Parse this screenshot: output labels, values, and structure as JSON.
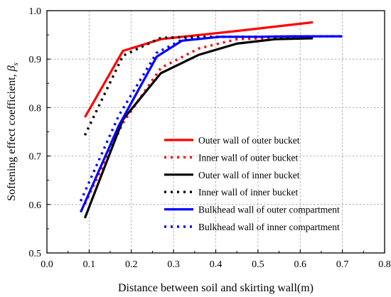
{
  "chart_data": {
    "type": "line",
    "xlabel": "Distance between soil and skirting wall(m)",
    "ylabel_main": "Softening effect coefficient, ",
    "ylabel_symbol": "β",
    "ylabel_subscript": "s",
    "xlim": [
      0.0,
      0.8
    ],
    "ylim": [
      0.5,
      1.0
    ],
    "xticks": [
      0.0,
      0.1,
      0.2,
      0.3,
      0.4,
      0.5,
      0.6,
      0.7,
      0.8
    ],
    "yticks": [
      0.5,
      0.6,
      0.7,
      0.8,
      0.9,
      1.0
    ],
    "xtick_labels": [
      "0.0",
      "0.1",
      "0.2",
      "0.3",
      "0.4",
      "0.5",
      "0.6",
      "0.7",
      "0.8"
    ],
    "ytick_labels": [
      "0.5",
      "0.6",
      "0.7",
      "0.8",
      "0.9",
      "1.0"
    ],
    "grid": true,
    "legend_position": "lower-right",
    "series": [
      {
        "name": "Outer wall of outer bucket",
        "color": "#ff0000",
        "style": "solid",
        "x": [
          0.09,
          0.18,
          0.27,
          0.32,
          0.45,
          0.54,
          0.63
        ],
        "y": [
          0.78,
          0.917,
          0.941,
          0.946,
          0.958,
          0.967,
          0.976
        ]
      },
      {
        "name": "Inner wall of outer bucket",
        "color": "#ff0000",
        "style": "dotted",
        "x": [
          0.09,
          0.18,
          0.27,
          0.36,
          0.45,
          0.54,
          0.63
        ],
        "y": [
          0.601,
          0.768,
          0.882,
          0.922,
          0.941,
          0.944,
          0.945
        ]
      },
      {
        "name": "Outer wall of inner bucket",
        "color": "#000000",
        "style": "solid",
        "x": [
          0.09,
          0.18,
          0.27,
          0.36,
          0.45,
          0.54,
          0.63
        ],
        "y": [
          0.572,
          0.775,
          0.871,
          0.909,
          0.932,
          0.941,
          0.943
        ]
      },
      {
        "name": "Inner wall of inner bucket",
        "color": "#000000",
        "style": "dotted",
        "x": [
          0.09,
          0.18,
          0.27,
          0.36,
          0.45,
          0.54,
          0.63
        ],
        "y": [
          0.743,
          0.907,
          0.944,
          0.946,
          0.946,
          0.946,
          0.946
        ]
      },
      {
        "name": "Bulkhead wall of outer compartment",
        "color": "#0000ff",
        "style": "solid",
        "x": [
          0.08,
          0.17,
          0.26,
          0.32,
          0.41,
          0.5,
          0.58,
          0.7
        ],
        "y": [
          0.584,
          0.762,
          0.905,
          0.938,
          0.946,
          0.946,
          0.947,
          0.947
        ]
      },
      {
        "name": "Bulkhead wall of inner compartment",
        "color": "#0000ff",
        "style": "dotted",
        "x": [
          0.08,
          0.17,
          0.26,
          0.32,
          0.41,
          0.5,
          0.58,
          0.7
        ],
        "y": [
          0.607,
          0.783,
          0.913,
          0.94,
          0.946,
          0.946,
          0.947,
          0.947
        ]
      }
    ]
  }
}
